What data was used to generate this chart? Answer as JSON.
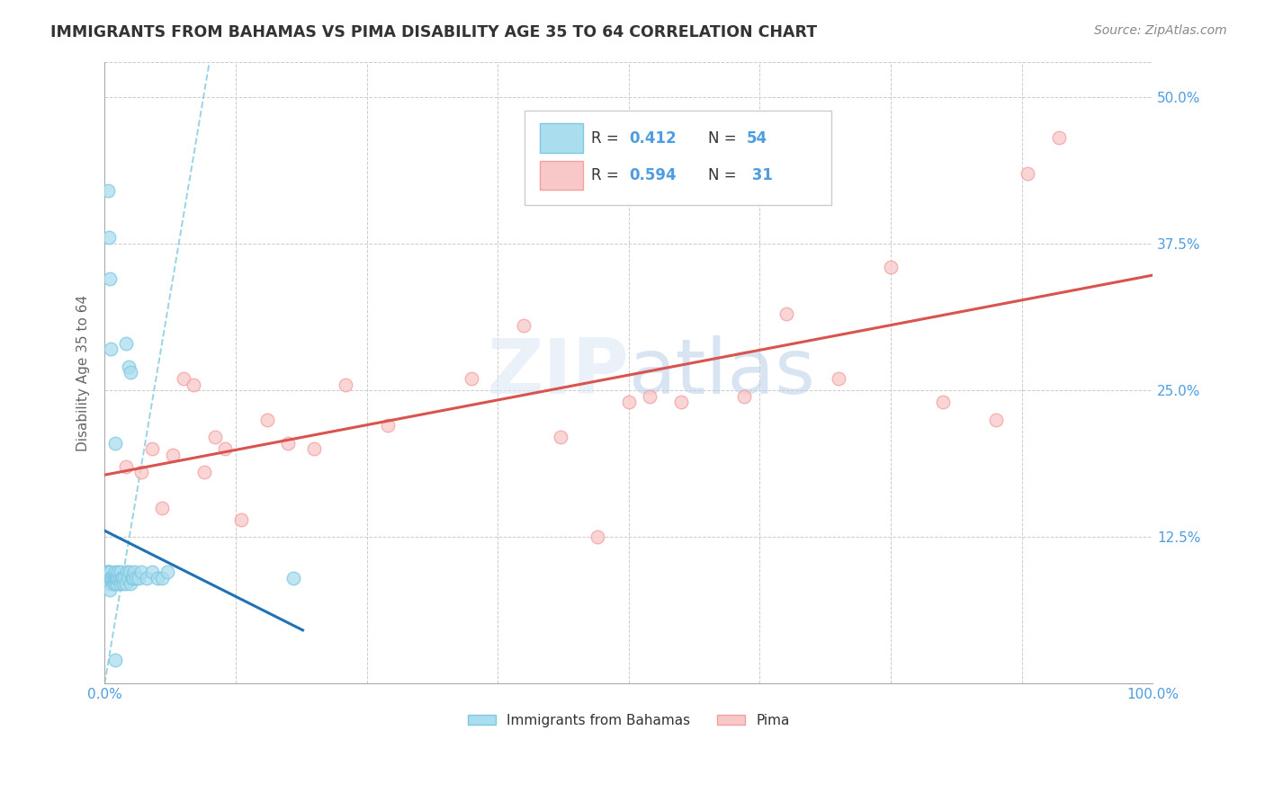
{
  "title": "IMMIGRANTS FROM BAHAMAS VS PIMA DISABILITY AGE 35 TO 64 CORRELATION CHART",
  "source": "Source: ZipAtlas.com",
  "ylabel": "Disability Age 35 to 64",
  "xlim": [
    0,
    100
  ],
  "ylim": [
    0,
    53
  ],
  "xticks": [
    0,
    12.5,
    25,
    37.5,
    50,
    62.5,
    75,
    87.5,
    100
  ],
  "yticks": [
    0,
    12.5,
    25,
    37.5,
    50
  ],
  "blue_color": "#7ec8e3",
  "blue_fill": "#aaddee",
  "pink_color": "#f4a0a0",
  "pink_fill": "#f8c8c8",
  "blue_line_color": "#2171b5",
  "pink_line_color": "#d9534f",
  "background_color": "#ffffff",
  "grid_color": "#cccccc",
  "title_color": "#333333",
  "axis_label_color": "#666666",
  "tick_color": "#4d9de0",
  "blue_x": [
    0.2,
    0.3,
    0.3,
    0.4,
    0.4,
    0.5,
    0.5,
    0.5,
    0.6,
    0.7,
    0.8,
    0.8,
    0.9,
    1.0,
    1.0,
    1.0,
    1.0,
    1.1,
    1.2,
    1.2,
    1.3,
    1.3,
    1.4,
    1.5,
    1.5,
    1.6,
    1.7,
    1.8,
    1.9,
    2.0,
    2.1,
    2.2,
    2.3,
    2.4,
    2.5,
    2.6,
    2.7,
    2.8,
    3.0,
    3.2,
    3.5,
    4.0,
    4.5,
    5.0,
    5.5,
    6.0,
    0.3,
    0.4,
    0.5,
    0.6,
    2.0,
    2.5,
    18.0,
    1.0
  ],
  "blue_y": [
    9.5,
    9.0,
    9.5,
    8.5,
    9.5,
    8.0,
    9.0,
    9.5,
    9.0,
    9.0,
    8.5,
    9.0,
    9.0,
    8.5,
    9.0,
    9.5,
    20.5,
    9.0,
    8.5,
    9.0,
    9.0,
    9.5,
    9.0,
    8.5,
    9.5,
    9.0,
    9.0,
    8.5,
    9.0,
    8.5,
    9.5,
    9.0,
    27.0,
    9.5,
    8.5,
    9.0,
    9.0,
    9.5,
    9.0,
    9.0,
    9.5,
    9.0,
    9.5,
    9.0,
    9.0,
    9.5,
    42.0,
    38.0,
    34.5,
    28.5,
    29.0,
    26.5,
    9.0,
    2.0
  ],
  "pink_x": [
    2.0,
    3.5,
    4.5,
    5.5,
    6.5,
    7.5,
    8.5,
    9.5,
    10.5,
    11.5,
    13.0,
    15.5,
    17.5,
    20.0,
    23.0,
    27.0,
    35.0,
    40.0,
    43.5,
    47.0,
    50.0,
    52.0,
    55.0,
    61.0,
    65.0,
    70.0,
    75.0,
    80.0,
    85.0,
    88.0,
    91.0
  ],
  "pink_y": [
    18.5,
    18.0,
    20.0,
    15.0,
    19.5,
    26.0,
    25.5,
    18.0,
    21.0,
    20.0,
    14.0,
    22.5,
    20.5,
    20.0,
    25.5,
    22.0,
    26.0,
    30.5,
    21.0,
    12.5,
    24.0,
    24.5,
    24.0,
    24.5,
    31.5,
    26.0,
    35.5,
    24.0,
    22.5,
    43.5,
    46.5
  ],
  "blue_dash_x0": 0.0,
  "blue_dash_y0": 0.0,
  "blue_dash_x1": 10.0,
  "blue_dash_y1": 53.0
}
